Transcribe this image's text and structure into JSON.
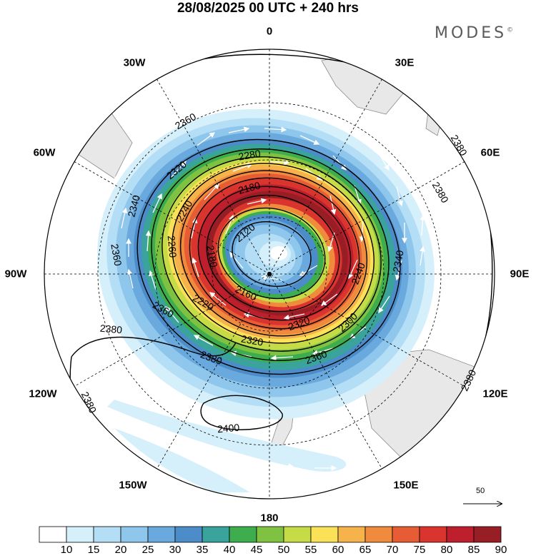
{
  "header": {
    "title": "28/08/2025  00 UTC  + 240 hrs",
    "brand": "MODES",
    "brand_mark": "©"
  },
  "map": {
    "projection": "south-polar-stereographic",
    "lon_labels": [
      "0",
      "30E",
      "60E",
      "90E",
      "120E",
      "150E",
      "180",
      "150W",
      "120W",
      "90W",
      "60W",
      "30W"
    ],
    "contour_labels": [
      "2120",
      "2160",
      "2180",
      "2180",
      "2220",
      "2240",
      "2240",
      "2260",
      "2280",
      "2300",
      "2320",
      "2320",
      "2320",
      "2340",
      "2340",
      "2360",
      "2360",
      "2360",
      "2360",
      "2380",
      "2380",
      "2380",
      "2380",
      "2380",
      "2400"
    ],
    "colors": {
      "land": "#e8e8e8",
      "coast": "#8c8c8c",
      "contour": "#000000",
      "wind_arrow": "#ffffff"
    },
    "reference_vector": "50"
  },
  "colorbar": {
    "ticks": [
      "10",
      "15",
      "20",
      "25",
      "30",
      "35",
      "40",
      "45",
      "50",
      "55",
      "60",
      "65",
      "70",
      "75",
      "80",
      "85",
      "90"
    ],
    "colors": [
      "#ffffff",
      "#d6f0fb",
      "#b4def5",
      "#8ec6ec",
      "#69a9dd",
      "#4c8cc8",
      "#3aa39b",
      "#3dad4e",
      "#7fc242",
      "#c6dc46",
      "#fbe157",
      "#f6b34b",
      "#f08a3d",
      "#e65c34",
      "#d9352e",
      "#bd1f2c",
      "#981e26"
    ]
  }
}
